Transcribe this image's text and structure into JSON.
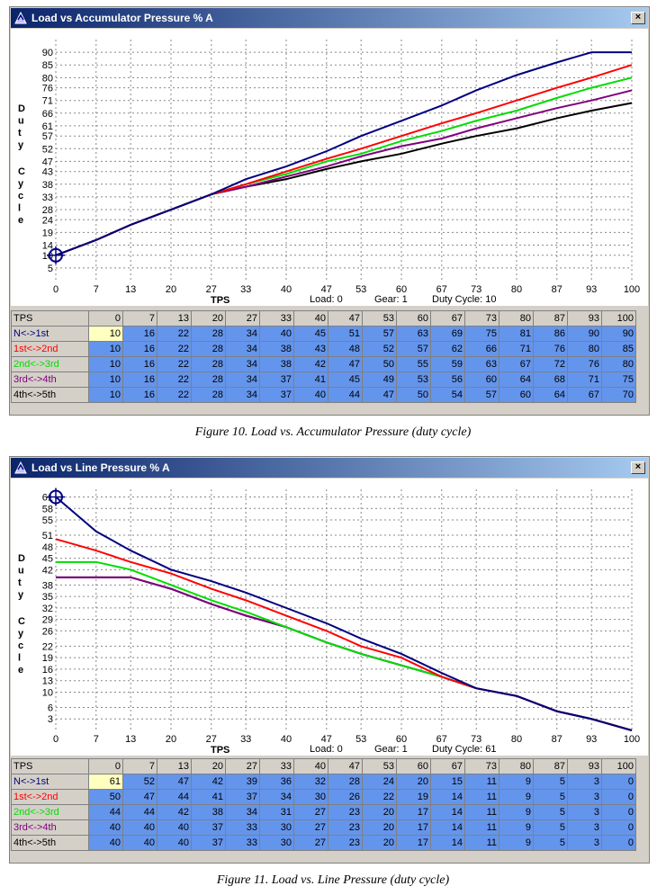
{
  "colors": {
    "n1": "#000080",
    "s12": "#ff0000",
    "s23": "#00dd00",
    "s34": "#800080",
    "s45": "#000000"
  },
  "windows": [
    {
      "title": "Load vs Accumulator Pressure % A",
      "close_label": "×",
      "ylabel": "Duty Cycle",
      "xlabel": "TPS",
      "status": {
        "load": "Load: 0",
        "gear": "Gear: 1",
        "duty": "Duty Cycle: 10"
      },
      "caption": "Figure 10. Load vs. Accumulator Pressure (duty cycle)",
      "chart_data": {
        "type": "line",
        "x": [
          0,
          7,
          13,
          20,
          27,
          33,
          40,
          47,
          53,
          60,
          67,
          73,
          80,
          87,
          93,
          100
        ],
        "xlim": [
          0,
          100
        ],
        "ylim": [
          0,
          95
        ],
        "yticks": [
          5,
          10,
          14,
          19,
          24,
          28,
          33,
          38,
          43,
          47,
          52,
          57,
          61,
          66,
          71,
          76,
          80,
          85,
          90
        ],
        "grid": true,
        "cursor": {
          "x": 0,
          "y": 10
        },
        "series": [
          {
            "name": "N<->1st",
            "color": "#000080",
            "values": [
              10,
              16,
              22,
              28,
              34,
              40,
              45,
              51,
              57,
              63,
              69,
              75,
              81,
              86,
              90,
              90
            ]
          },
          {
            "name": "1st<->2nd",
            "color": "#ff0000",
            "values": [
              10,
              16,
              22,
              28,
              34,
              38,
              43,
              48,
              52,
              57,
              62,
              66,
              71,
              76,
              80,
              85
            ]
          },
          {
            "name": "2nd<->3rd",
            "color": "#00dd00",
            "values": [
              10,
              16,
              22,
              28,
              34,
              38,
              42,
              47,
              50,
              55,
              59,
              63,
              67,
              72,
              76,
              80
            ]
          },
          {
            "name": "3rd<->4th",
            "color": "#800080",
            "values": [
              10,
              16,
              22,
              28,
              34,
              37,
              41,
              45,
              49,
              53,
              56,
              60,
              64,
              68,
              71,
              75
            ]
          },
          {
            "name": "4th<->5th",
            "color": "#000000",
            "values": [
              10,
              16,
              22,
              28,
              34,
              37,
              40,
              44,
              47,
              50,
              54,
              57,
              60,
              64,
              67,
              70
            ]
          }
        ]
      }
    },
    {
      "title": "Load vs Line Pressure % A",
      "close_label": "×",
      "ylabel": "Duty Cycle",
      "xlabel": "TPS",
      "status": {
        "load": "Load: 0",
        "gear": "Gear: 1",
        "duty": "Duty Cycle: 61"
      },
      "caption": "Figure 11.  Load vs. Line Pressure (duty cycle)",
      "chart_data": {
        "type": "line",
        "x": [
          0,
          7,
          13,
          20,
          27,
          33,
          40,
          47,
          53,
          60,
          67,
          73,
          80,
          87,
          93,
          100
        ],
        "xlim": [
          0,
          100
        ],
        "ylim": [
          0,
          63
        ],
        "yticks": [
          3,
          6,
          10,
          13,
          16,
          19,
          22,
          26,
          29,
          32,
          35,
          38,
          42,
          45,
          48,
          51,
          55,
          58,
          61
        ],
        "grid": true,
        "cursor": {
          "x": 0,
          "y": 61
        },
        "series": [
          {
            "name": "N<->1st",
            "color": "#000080",
            "values": [
              61,
              52,
              47,
              42,
              39,
              36,
              32,
              28,
              24,
              20,
              15,
              11,
              9,
              5,
              3,
              0
            ]
          },
          {
            "name": "1st<->2nd",
            "color": "#ff0000",
            "values": [
              50,
              47,
              44,
              41,
              37,
              34,
              30,
              26,
              22,
              19,
              14,
              11,
              9,
              5,
              3,
              0
            ]
          },
          {
            "name": "2nd<->3rd",
            "color": "#00dd00",
            "values": [
              44,
              44,
              42,
              38,
              34,
              31,
              27,
              23,
              20,
              17,
              14,
              11,
              9,
              5,
              3,
              0
            ]
          },
          {
            "name": "3rd<->4th",
            "color": "#800080",
            "values": [
              40,
              40,
              40,
              37,
              33,
              30,
              27,
              23,
              20,
              17,
              14,
              11,
              9,
              5,
              3,
              0
            ]
          },
          {
            "name": "4th<->5th",
            "color": "#000000",
            "values": [
              40,
              40,
              40,
              37,
              33,
              30,
              27,
              23,
              20,
              17,
              14,
              11,
              9,
              5,
              3,
              0
            ]
          }
        ]
      }
    }
  ],
  "table": {
    "header_label": "TPS",
    "row_labels": [
      "N<->1st",
      "1st<->2nd",
      "2nd<->3rd",
      "3rd<->4th",
      "4th<->5th"
    ]
  }
}
